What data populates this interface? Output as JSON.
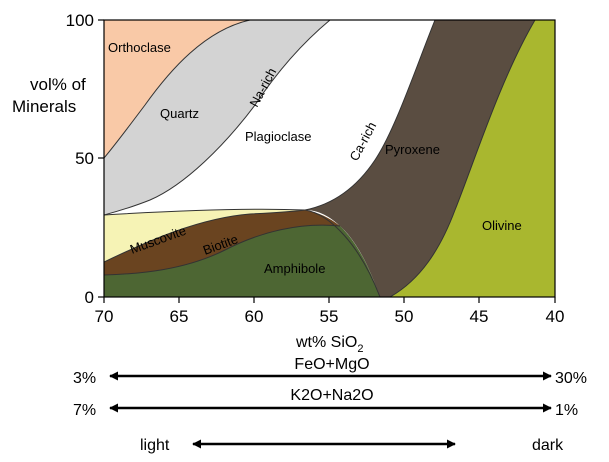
{
  "chart": {
    "y_axis_label_line1": "vol% of",
    "y_axis_label_line2": "Minerals",
    "x_axis_label": "wt% SiO",
    "x_axis_label_subscript": "2",
    "y_ticks": [
      "100",
      "50",
      "0"
    ],
    "x_ticks": [
      "70",
      "65",
      "60",
      "55",
      "50",
      "45",
      "40"
    ],
    "mineral_labels": {
      "orthoclase": "Orthoclase",
      "quartz": "Quartz",
      "na_rich": "Na-rich",
      "plagioclase": "Plagioclase",
      "ca_rich": "Ca-rich",
      "pyroxene": "Pyroxene",
      "olivine": "Olivine",
      "muscovite": "Muscovite",
      "biotite": "Biotite",
      "amphibole": "Amphibole"
    },
    "colors": {
      "orthoclase": "#f9c9a7",
      "quartz": "#d3d3d3",
      "plagioclase": "#ffffff",
      "pyroxene": "#5a4d41",
      "olivine": "#a9b72f",
      "muscovite": "#f6f3b5",
      "biotite": "#6a4420",
      "amphibole": "#4d6633"
    }
  },
  "scales": [
    {
      "left": "3%",
      "label": "FeO+MgO",
      "right": "30%"
    },
    {
      "left": "7%",
      "label": "K2O+Na2O",
      "right": "1%"
    },
    {
      "left": "light",
      "label": "",
      "right": "dark"
    }
  ]
}
